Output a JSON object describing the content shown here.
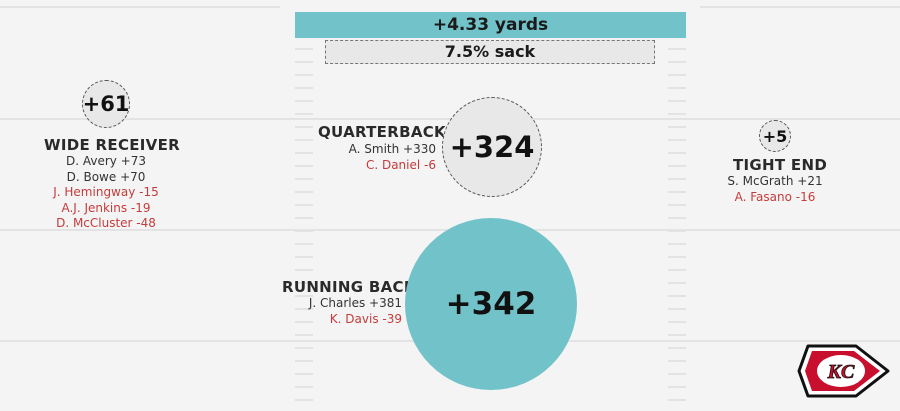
{
  "header": {
    "yards_per_play": "+4.33 yards",
    "sack_rate": "7.5% sack"
  },
  "positions": {
    "wide_receiver": {
      "title": "WIDE RECEIVER",
      "total": "+61",
      "players": [
        {
          "text": "D. Avery +73",
          "sign": "pos"
        },
        {
          "text": "D. Bowe +70",
          "sign": "pos"
        },
        {
          "text": "J. Hemingway -15",
          "sign": "neg"
        },
        {
          "text": "A.J. Jenkins -19",
          "sign": "neg"
        },
        {
          "text": "D. McCluster -48",
          "sign": "neg"
        }
      ]
    },
    "quarterback": {
      "title": "QUARTERBACK",
      "total": "+324",
      "players": [
        {
          "text": "A. Smith +330",
          "sign": "pos"
        },
        {
          "text": "C. Daniel -6",
          "sign": "neg"
        }
      ]
    },
    "tight_end": {
      "title": "TIGHT END",
      "total": "+5",
      "players": [
        {
          "text": "S. McGrath +21",
          "sign": "pos"
        },
        {
          "text": "A. Fasano -16",
          "sign": "neg"
        }
      ]
    },
    "running_back": {
      "title": "RUNNING BACK",
      "total": "+342",
      "players": [
        {
          "text": "J. Charles +381",
          "sign": "pos"
        },
        {
          "text": "K. Davis -39",
          "sign": "neg"
        }
      ]
    }
  },
  "logo": {
    "icon": "kansas-city-chiefs-arrowhead-logo",
    "text": "KC"
  },
  "colors": {
    "teal": "#72c3c9",
    "grey_fill": "#e8e8e8",
    "negative": "#c43c3c",
    "positive": "#333333",
    "logo_red": "#c8102e"
  },
  "chart_data": {
    "type": "bubble",
    "categories": [
      "Wide Receiver",
      "Quarterback",
      "Tight End",
      "Running Back"
    ],
    "values": [
      61,
      324,
      5,
      342
    ],
    "series": [
      {
        "position": "Wide Receiver",
        "total": 61,
        "players": [
          [
            "D. Avery",
            73
          ],
          [
            "D. Bowe",
            70
          ],
          [
            "J. Hemingway",
            -15
          ],
          [
            "A.J. Jenkins",
            -19
          ],
          [
            "D. McCluster",
            -48
          ]
        ]
      },
      {
        "position": "Quarterback",
        "total": 324,
        "players": [
          [
            "A. Smith",
            330
          ],
          [
            "C. Daniel",
            -6
          ]
        ]
      },
      {
        "position": "Tight End",
        "total": 5,
        "players": [
          [
            "S. McGrath",
            21
          ],
          [
            "A. Fasano",
            -16
          ]
        ]
      },
      {
        "position": "Running Back",
        "total": 342,
        "players": [
          [
            "J. Charles",
            381
          ],
          [
            "K. Davis",
            -39
          ]
        ]
      }
    ],
    "yards_per_play": 4.33,
    "sack_rate_percent": 7.5
  }
}
